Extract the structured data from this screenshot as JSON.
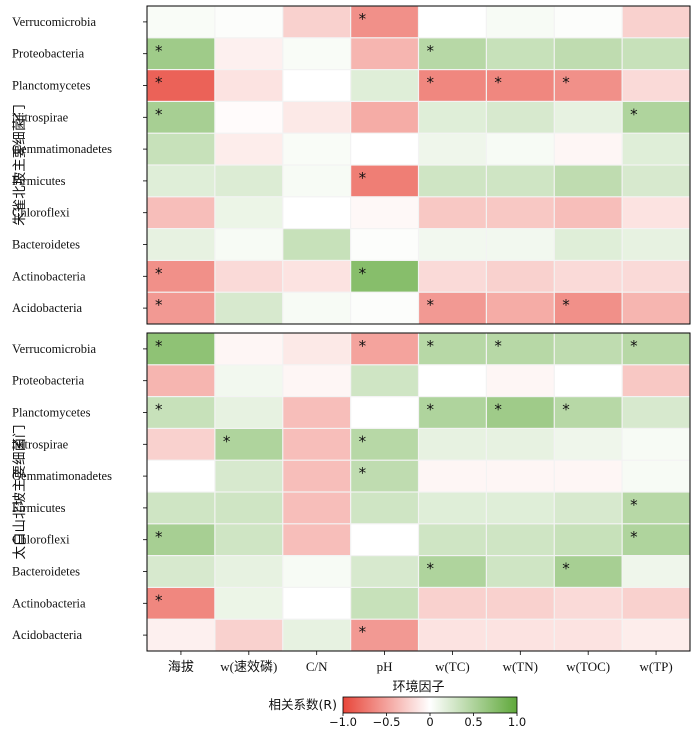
{
  "chart_data": {
    "type": "heatmap",
    "xlabel": "环境因子",
    "columns": [
      "海拔",
      "w(速效磷)",
      "C/N",
      "pH",
      "w(TC)",
      "w(TN)",
      "w(TOC)",
      "w(TP)"
    ],
    "colorbar": {
      "title": "相关系数(R)",
      "ticks": [
        "−1.0",
        "−0.5",
        "0",
        "0.5",
        "1.0"
      ],
      "range": [
        -1,
        1
      ],
      "low_color": "#e8463a",
      "mid_color": "#ffffff",
      "high_color": "#5fa83a"
    },
    "panels": [
      {
        "title": "朱雀北坡主要细菌门",
        "rows": [
          "Verrucomicrobia",
          "Proteobacteria",
          "Planctomycetes",
          "Nitrospirae",
          "Gemmatimonadetes",
          "Firmicutes",
          "Chloroflexi",
          "Bacteroidetes",
          "Actinobacteria",
          "Acidobacteria"
        ],
        "values": [
          [
            0.04,
            0.02,
            -0.25,
            -0.6,
            0.0,
            0.05,
            0.02,
            -0.25
          ],
          [
            0.6,
            -0.08,
            0.04,
            -0.4,
            0.45,
            0.35,
            0.4,
            0.35
          ],
          [
            -0.85,
            -0.15,
            0.0,
            0.2,
            -0.65,
            -0.65,
            -0.6,
            -0.2
          ],
          [
            0.55,
            -0.02,
            -0.12,
            -0.45,
            0.2,
            0.25,
            0.15,
            0.5
          ],
          [
            0.35,
            -0.1,
            0.04,
            0.0,
            0.1,
            0.05,
            -0.05,
            0.2
          ],
          [
            0.2,
            0.22,
            0.05,
            -0.7,
            0.3,
            0.3,
            0.4,
            0.25
          ],
          [
            -0.35,
            0.12,
            0.0,
            -0.04,
            -0.3,
            -0.3,
            -0.35,
            -0.15
          ],
          [
            0.15,
            0.05,
            0.35,
            0.02,
            0.08,
            0.08,
            0.2,
            0.15
          ],
          [
            -0.6,
            -0.2,
            -0.15,
            0.75,
            -0.2,
            -0.25,
            -0.2,
            -0.2
          ],
          [
            -0.55,
            0.25,
            0.05,
            0.02,
            -0.55,
            -0.45,
            -0.6,
            -0.4
          ]
        ],
        "significant": [
          [
            3
          ],
          [
            0,
            4
          ],
          [
            0,
            4,
            5,
            6
          ],
          [
            0,
            7
          ],
          [],
          [
            3
          ],
          [],
          [],
          [
            0,
            3
          ],
          [
            0,
            4,
            6
          ]
        ]
      },
      {
        "title": "太白山北坡主要细菌门",
        "rows": [
          "Verrucomicrobia",
          "Proteobacteria",
          "Planctomycetes",
          "Nitrospirae",
          "Gemmatimonadetes",
          "Firmicutes",
          "Chloroflexi",
          "Bacteroidetes",
          "Actinobacteria",
          "Acidobacteria"
        ],
        "values": [
          [
            0.7,
            -0.05,
            -0.12,
            -0.5,
            0.45,
            0.45,
            0.4,
            0.45
          ],
          [
            -0.4,
            0.08,
            -0.05,
            0.3,
            0.0,
            -0.05,
            0.0,
            -0.3
          ],
          [
            0.35,
            0.15,
            -0.35,
            0.0,
            0.5,
            0.6,
            0.45,
            0.25
          ],
          [
            -0.25,
            0.5,
            -0.35,
            0.45,
            0.15,
            0.15,
            0.1,
            0.05
          ],
          [
            0.0,
            0.25,
            -0.35,
            0.4,
            -0.05,
            -0.05,
            -0.05,
            0.05
          ],
          [
            0.3,
            0.3,
            -0.35,
            0.3,
            0.2,
            0.2,
            0.25,
            0.45
          ],
          [
            0.55,
            0.3,
            -0.35,
            0.0,
            0.3,
            0.3,
            0.35,
            0.5
          ],
          [
            0.25,
            0.15,
            0.05,
            0.25,
            0.5,
            0.3,
            0.55,
            0.1
          ],
          [
            -0.65,
            0.12,
            0.0,
            0.35,
            -0.25,
            -0.25,
            -0.2,
            -0.25
          ],
          [
            -0.08,
            -0.25,
            0.15,
            -0.55,
            -0.15,
            -0.15,
            -0.15,
            -0.1
          ]
        ],
        "significant": [
          [
            0,
            3,
            4,
            5,
            7
          ],
          [],
          [
            0,
            4,
            5,
            6
          ],
          [
            1,
            3
          ],
          [
            3
          ],
          [
            7
          ],
          [
            0,
            7
          ],
          [
            4,
            6
          ],
          [
            0
          ],
          [
            3
          ]
        ]
      }
    ]
  }
}
